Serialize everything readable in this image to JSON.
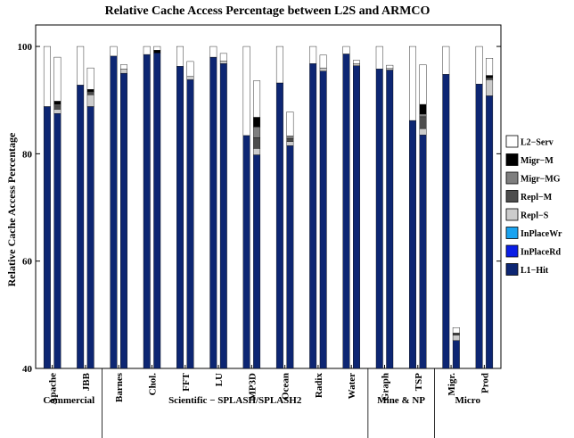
{
  "chart_data": {
    "type": "bar",
    "stacked": true,
    "title": "Relative Cache Access Percentage between L2S and ARMCO",
    "ylabel": "Relative Cache Access Percentage",
    "xlabel": "",
    "ylim": [
      40,
      104
    ],
    "yticks": [
      40,
      60,
      80,
      100
    ],
    "legend_position": "right",
    "grid": false,
    "series": [
      {
        "name": "L2−Serv",
        "color": "#ffffff"
      },
      {
        "name": "Migr−M",
        "color": "#000000"
      },
      {
        "name": "Migr−MG",
        "color": "#7f7f7f"
      },
      {
        "name": "Repl−M",
        "color": "#4d4d4d"
      },
      {
        "name": "Repl−S",
        "color": "#cccccc"
      },
      {
        "name": "InPlaceWr",
        "color": "#1aa3f0"
      },
      {
        "name": "InPlaceRd",
        "color": "#0a1ee6"
      },
      {
        "name": "L1−Hit",
        "color": "#0d2673"
      }
    ],
    "benchmarks": [
      {
        "name": "Apache",
        "bars": [
          {
            "L1-Hit": 88.8,
            "Repl-S": 0,
            "Repl-M": 0,
            "Migr-MG": 0,
            "Migr-M": 0,
            "L2-Serv": 11.2
          },
          {
            "L1-Hit": 87.5,
            "Repl-S": 0.8,
            "Repl-M": 0.6,
            "Migr-MG": 0.3,
            "Migr-M": 0.6,
            "L2-Serv": 8.2
          }
        ]
      },
      {
        "name": "JBB",
        "bars": [
          {
            "L1-Hit": 92.8,
            "Repl-S": 0,
            "Repl-M": 0,
            "Migr-MG": 0,
            "Migr-M": 0,
            "L2-Serv": 7.2
          },
          {
            "L1-Hit": 88.8,
            "Repl-S": 2.2,
            "Repl-M": 0.4,
            "Migr-MG": 0.2,
            "Migr-M": 0.4,
            "L2-Serv": 4.0
          }
        ]
      },
      {
        "name": "Barnes",
        "bars": [
          {
            "L1-Hit": 98.2,
            "Repl-S": 0,
            "Repl-M": 0,
            "Migr-MG": 0,
            "Migr-M": 0,
            "L2-Serv": 1.8
          },
          {
            "L1-Hit": 95.0,
            "Repl-S": 0.8,
            "Repl-M": 0,
            "Migr-MG": 0,
            "Migr-M": 0,
            "L2-Serv": 0.8
          }
        ]
      },
      {
        "name": "Chol.",
        "bars": [
          {
            "L1-Hit": 98.5,
            "Repl-S": 0,
            "Repl-M": 0,
            "Migr-MG": 0,
            "Migr-M": 0,
            "L2-Serv": 1.5
          },
          {
            "L1-Hit": 98.8,
            "Repl-S": 0,
            "Repl-M": 0,
            "Migr-MG": 0,
            "Migr-M": 0.5,
            "L2-Serv": 0.7
          }
        ]
      },
      {
        "name": "FFT",
        "bars": [
          {
            "L1-Hit": 96.3,
            "Repl-S": 0,
            "Repl-M": 0,
            "Migr-MG": 0,
            "Migr-M": 0,
            "L2-Serv": 3.7
          },
          {
            "L1-Hit": 93.8,
            "Repl-S": 0.6,
            "Repl-M": 0,
            "Migr-MG": 0,
            "Migr-M": 0,
            "L2-Serv": 2.8
          }
        ]
      },
      {
        "name": "LU",
        "bars": [
          {
            "L1-Hit": 98.0,
            "Repl-S": 0,
            "Repl-M": 0,
            "Migr-MG": 0,
            "Migr-M": 0,
            "L2-Serv": 2.0
          },
          {
            "L1-Hit": 96.8,
            "Repl-S": 0.5,
            "Repl-M": 0,
            "Migr-MG": 0,
            "Migr-M": 0,
            "L2-Serv": 1.4
          }
        ]
      },
      {
        "name": "MP3D",
        "bars": [
          {
            "L1-Hit": 83.4,
            "Repl-S": 0,
            "Repl-M": 0,
            "Migr-MG": 0,
            "Migr-M": 0,
            "L2-Serv": 16.6
          },
          {
            "L1-Hit": 79.8,
            "Repl-S": 1.2,
            "Repl-M": 2.0,
            "Migr-MG": 2.0,
            "Migr-M": 1.8,
            "L2-Serv": 6.8
          }
        ]
      },
      {
        "name": "Ocean",
        "bars": [
          {
            "L1-Hit": 93.2,
            "Repl-S": 0,
            "Repl-M": 0,
            "Migr-MG": 0,
            "Migr-M": 0,
            "L2-Serv": 6.8
          },
          {
            "L1-Hit": 81.5,
            "Repl-S": 0.8,
            "Repl-M": 0.5,
            "Migr-MG": 0.5,
            "Migr-M": 0,
            "L2-Serv": 4.5
          }
        ]
      },
      {
        "name": "Radix",
        "bars": [
          {
            "L1-Hit": 96.8,
            "Repl-S": 0,
            "Repl-M": 0,
            "Migr-MG": 0,
            "Migr-M": 0,
            "L2-Serv": 3.2
          },
          {
            "L1-Hit": 95.4,
            "Repl-S": 0.6,
            "Repl-M": 0,
            "Migr-MG": 0,
            "Migr-M": 0,
            "L2-Serv": 2.4
          }
        ]
      },
      {
        "name": "Water",
        "bars": [
          {
            "L1-Hit": 98.6,
            "Repl-S": 0,
            "Repl-M": 0,
            "Migr-MG": 0,
            "Migr-M": 0,
            "L2-Serv": 1.4
          },
          {
            "L1-Hit": 96.4,
            "Repl-S": 0.4,
            "Repl-M": 0,
            "Migr-MG": 0,
            "Migr-M": 0,
            "L2-Serv": 0.6
          }
        ]
      },
      {
        "name": "Graph",
        "bars": [
          {
            "L1-Hit": 95.8,
            "Repl-S": 0,
            "Repl-M": 0,
            "Migr-MG": 0,
            "Migr-M": 0,
            "L2-Serv": 4.2
          },
          {
            "L1-Hit": 95.6,
            "Repl-S": 0.3,
            "Repl-M": 0,
            "Migr-MG": 0,
            "Migr-M": 0,
            "L2-Serv": 0.6
          }
        ]
      },
      {
        "name": "TSP",
        "bars": [
          {
            "L1-Hit": 86.2,
            "Repl-S": 0,
            "Repl-M": 0,
            "Migr-MG": 0,
            "Migr-M": 0,
            "L2-Serv": 13.8
          },
          {
            "L1-Hit": 83.5,
            "Repl-S": 1.2,
            "Repl-M": 2.2,
            "Migr-MG": 0.5,
            "Migr-M": 1.8,
            "L2-Serv": 7.4
          }
        ]
      },
      {
        "name": "Migr.",
        "bars": [
          {
            "L1-Hit": 94.8,
            "Repl-S": 0,
            "Repl-M": 0,
            "Migr-MG": 0,
            "Migr-M": 0,
            "L2-Serv": 5.2
          },
          {
            "L1-Hit": 45.2,
            "Repl-S": 1.0,
            "Repl-M": 0.4,
            "Migr-MG": 0,
            "Migr-M": 0,
            "L2-Serv": 1.0
          }
        ]
      },
      {
        "name": "Prod",
        "bars": [
          {
            "L1-Hit": 93.0,
            "Repl-S": 0,
            "Repl-M": 0,
            "Migr-MG": 0,
            "Migr-M": 0,
            "L2-Serv": 7.0
          },
          {
            "L1-Hit": 90.8,
            "Repl-S": 3.0,
            "Repl-M": 0.4,
            "Migr-MG": 0,
            "Migr-M": 0.4,
            "L2-Serv": 3.2
          }
        ]
      }
    ],
    "groups": [
      {
        "name": "Commercial",
        "start": 0,
        "end": 1
      },
      {
        "name": "Scientific − SPLASH/SPLASH2",
        "start": 2,
        "end": 9
      },
      {
        "name": "Mine & NP",
        "start": 10,
        "end": 11
      },
      {
        "name": "Micro",
        "start": 12,
        "end": 13
      }
    ]
  }
}
